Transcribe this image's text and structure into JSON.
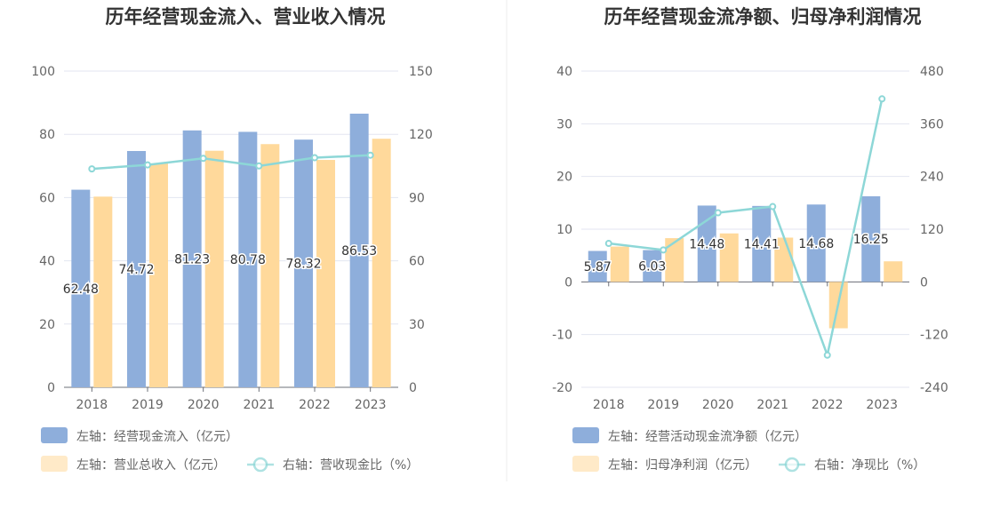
{
  "chart_data": [
    {
      "type": "bar",
      "title": "历年经营现金流入、营业收入情况",
      "categories": [
        "2018",
        "2019",
        "2020",
        "2021",
        "2022",
        "2023"
      ],
      "left_axis": {
        "ticks": [
          "0",
          "20",
          "40",
          "60",
          "80",
          "100"
        ],
        "ylim": [
          0,
          100
        ]
      },
      "right_axis": {
        "ticks": [
          "0",
          "30",
          "60",
          "90",
          "120",
          "150"
        ],
        "ylim": [
          0,
          150
        ]
      },
      "series": [
        {
          "name": "左轴：经营现金流入（亿元）",
          "type": "bar",
          "axis": "left",
          "color": "#8eaedb",
          "values": [
            62.48,
            74.72,
            81.23,
            80.78,
            78.32,
            86.53
          ],
          "labels": [
            "62.48",
            "74.72",
            "81.23",
            "80.78",
            "78.32",
            "86.53"
          ]
        },
        {
          "name": "左轴：营业总收入（亿元）",
          "type": "bar",
          "axis": "left",
          "color": "#ffd99b",
          "values": [
            60.3,
            70.8,
            74.8,
            76.9,
            71.9,
            78.6
          ]
        },
        {
          "name": "右轴：营收现金比（%）",
          "type": "line",
          "axis": "right",
          "color": "#8dd7d7",
          "values": [
            103.6,
            105.5,
            108.6,
            105.0,
            108.9,
            110.1
          ]
        }
      ],
      "legend_position": "bottom-left"
    },
    {
      "type": "bar",
      "title": "历年经营现金流净额、归母净利润情况",
      "categories": [
        "2018",
        "2019",
        "2020",
        "2021",
        "2022",
        "2023"
      ],
      "left_axis": {
        "ticks": [
          "-20",
          "-10",
          "0",
          "10",
          "20",
          "30",
          "40"
        ],
        "ylim": [
          -20,
          40
        ]
      },
      "right_axis": {
        "ticks": [
          "-240",
          "-120",
          "0",
          "120",
          "240",
          "360",
          "480"
        ],
        "ylim": [
          -240,
          480
        ]
      },
      "series": [
        {
          "name": "左轴：经营活动现金流净额（亿元）",
          "type": "bar",
          "axis": "left",
          "color": "#8eaedb",
          "values": [
            5.87,
            6.03,
            14.48,
            14.41,
            14.68,
            16.25
          ],
          "labels": [
            "5.87",
            "6.03",
            "14.48",
            "14.41",
            "14.68",
            "16.25"
          ]
        },
        {
          "name": "左轴：归母净利润（亿元）",
          "type": "bar",
          "axis": "left",
          "color": "#ffd99b",
          "values": [
            6.7,
            8.3,
            9.2,
            8.4,
            -8.8,
            3.9
          ]
        },
        {
          "name": "右轴：净现比（%）",
          "type": "line",
          "axis": "right",
          "color": "#8dd7d7",
          "values": [
            87.6,
            72.7,
            157.4,
            171.5,
            -166.8,
            416.7
          ]
        }
      ],
      "legend_position": "bottom-left"
    }
  ]
}
